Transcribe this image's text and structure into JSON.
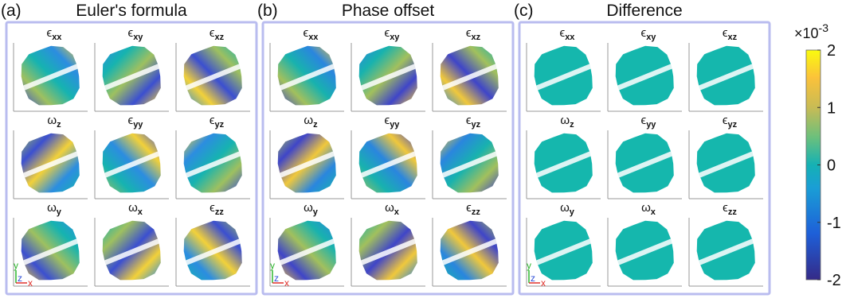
{
  "panels": [
    {
      "label": "(a)",
      "title": "Euler's formula",
      "subplots": [
        {
          "symbol": "ϵ",
          "sub": "xx"
        },
        {
          "symbol": "ϵ",
          "sub": "xy"
        },
        {
          "symbol": "ϵ",
          "sub": "xz"
        },
        {
          "symbol": "ω",
          "sub": "z"
        },
        {
          "symbol": "ϵ",
          "sub": "yy"
        },
        {
          "symbol": "ϵ",
          "sub": "yz"
        },
        {
          "symbol": "ω",
          "sub": "y"
        },
        {
          "symbol": "ω",
          "sub": "x"
        },
        {
          "symbol": "ϵ",
          "sub": "zz"
        }
      ]
    },
    {
      "label": "(b)",
      "title": "Phase offset",
      "subplots": [
        {
          "symbol": "ϵ",
          "sub": "xx"
        },
        {
          "symbol": "ϵ",
          "sub": "xy"
        },
        {
          "symbol": "ϵ",
          "sub": "xz"
        },
        {
          "symbol": "ω",
          "sub": "z"
        },
        {
          "symbol": "ϵ",
          "sub": "yy"
        },
        {
          "symbol": "ϵ",
          "sub": "yz"
        },
        {
          "symbol": "ω",
          "sub": "y"
        },
        {
          "symbol": "ω",
          "sub": "x"
        },
        {
          "symbol": "ϵ",
          "sub": "zz"
        }
      ]
    },
    {
      "label": "(c)",
      "title": "Difference",
      "subplots": [
        {
          "symbol": "ϵ",
          "sub": "xx"
        },
        {
          "symbol": "ϵ",
          "sub": "xy"
        },
        {
          "symbol": "ϵ",
          "sub": "xz"
        },
        {
          "symbol": "ω",
          "sub": "z"
        },
        {
          "symbol": "ϵ",
          "sub": "yy"
        },
        {
          "symbol": "ϵ",
          "sub": "yz"
        },
        {
          "symbol": "ω",
          "sub": "y"
        },
        {
          "symbol": "ω",
          "sub": "x"
        },
        {
          "symbol": "ϵ",
          "sub": "zz"
        }
      ]
    }
  ],
  "axis_labels": [
    "y",
    "z",
    "x"
  ],
  "colorbar": {
    "range": [
      -2,
      2
    ],
    "ticks": [
      2,
      1,
      0,
      -1,
      -2
    ],
    "multiplier": "×10",
    "exponent": "-3"
  }
}
